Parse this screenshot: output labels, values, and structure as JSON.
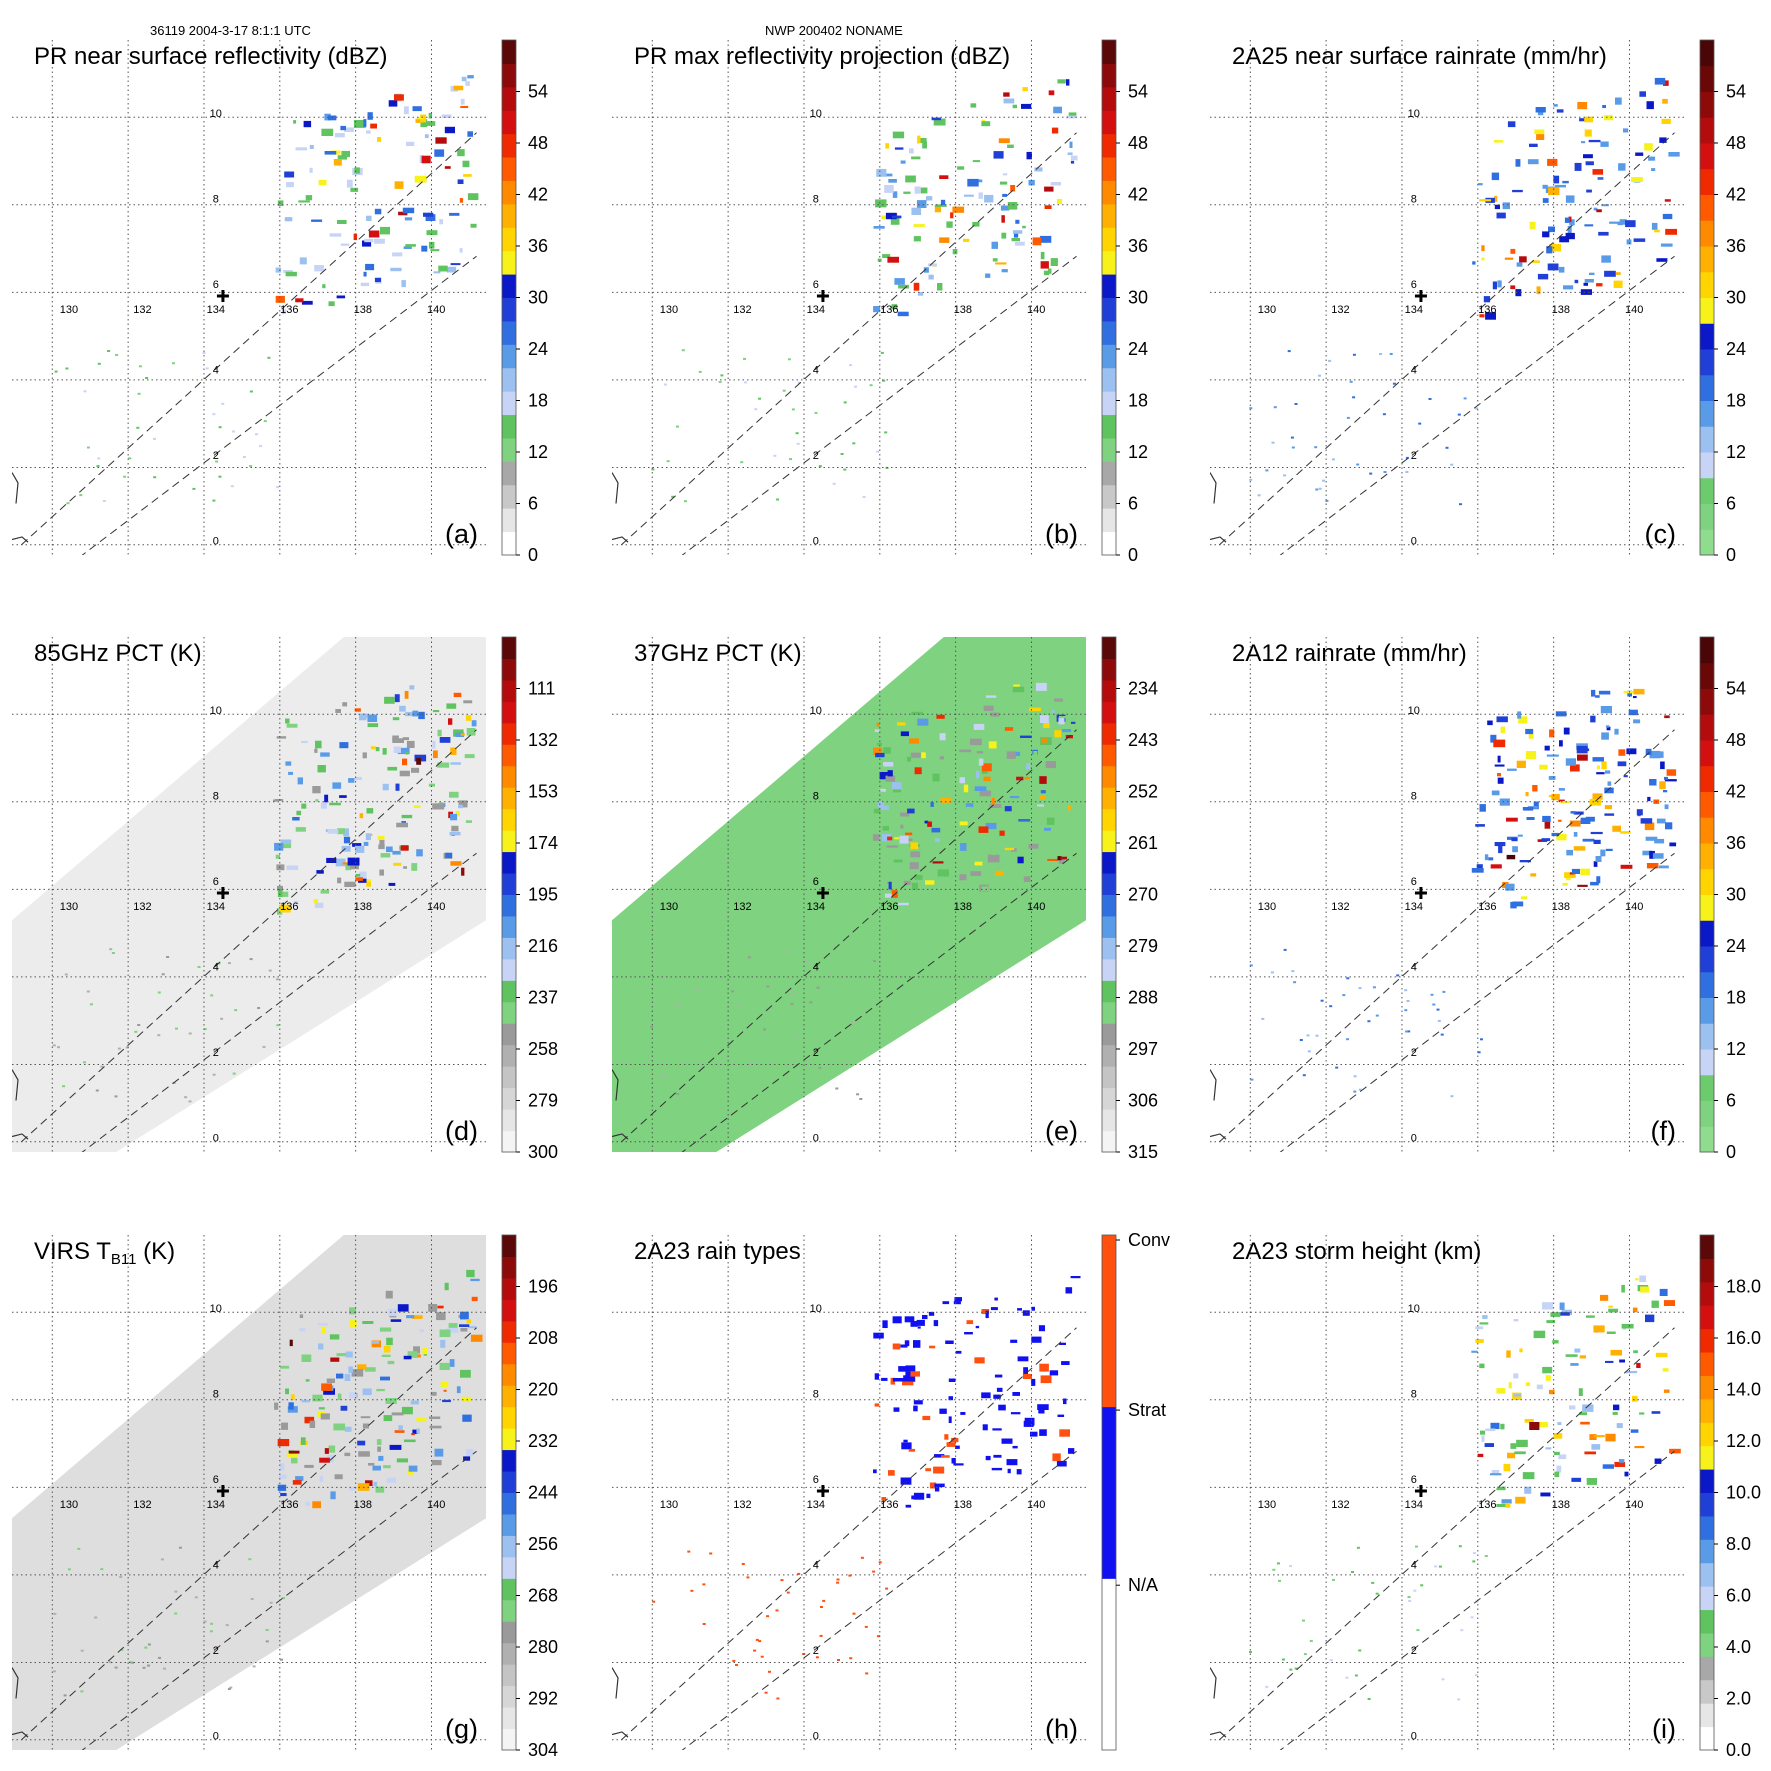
{
  "figure": {
    "header_left": "36119 2004-3-17 8:1:1 UTC",
    "header_right": "NWP 200402 NONAME"
  },
  "chart_data": [
    {
      "id": "a",
      "type": "heatmap",
      "title": "PR near surface reflectivity (dBZ)",
      "panel_label": "(a)",
      "colorbar_ticks": [
        "0",
        "6",
        "12",
        "18",
        "24",
        "30",
        "36",
        "42",
        "48",
        "54"
      ],
      "colors": [
        "#ffffff",
        "#e6e6e6",
        "#c8c8c8",
        "#a8a8a8",
        "#7fd27f",
        "#5fc45f",
        "#c8d4f5",
        "#9cc0f0",
        "#5a9be8",
        "#2f6fe0",
        "#1f3fd6",
        "#0a18c8",
        "#f7f21a",
        "#ffd400",
        "#ffb000",
        "#ff8a00",
        "#ff5a00",
        "#f02a00",
        "#d40f0f",
        "#b40c0c",
        "#8c0a0a",
        "#5a0808"
      ],
      "x_ticks": [
        "130",
        "132",
        "134",
        "136",
        "138",
        "140"
      ],
      "y_ticks": [
        "0",
        "2",
        "4",
        "6",
        "8",
        "10"
      ],
      "coverage": "swath"
    },
    {
      "id": "b",
      "type": "heatmap",
      "title": "PR max reflectivity projection (dBZ)",
      "panel_label": "(b)",
      "colorbar_ticks": [
        "0",
        "6",
        "12",
        "18",
        "24",
        "30",
        "36",
        "42",
        "48",
        "54"
      ],
      "colors": [
        "#ffffff",
        "#e6e6e6",
        "#c8c8c8",
        "#a8a8a8",
        "#7fd27f",
        "#5fc45f",
        "#c8d4f5",
        "#9cc0f0",
        "#5a9be8",
        "#2f6fe0",
        "#1f3fd6",
        "#0a18c8",
        "#f7f21a",
        "#ffd400",
        "#ffb000",
        "#ff8a00",
        "#ff5a00",
        "#f02a00",
        "#d40f0f",
        "#b40c0c",
        "#8c0a0a",
        "#5a0808"
      ],
      "x_ticks": [
        "130",
        "132",
        "134",
        "136",
        "138",
        "140"
      ],
      "y_ticks": [
        "0",
        "2",
        "4",
        "6",
        "8",
        "10"
      ],
      "coverage": "swath"
    },
    {
      "id": "c",
      "type": "heatmap",
      "title": "2A25 near surface rainrate (mm/hr)",
      "panel_label": "(c)",
      "colorbar_ticks": [
        "0",
        "6",
        "12",
        "18",
        "24",
        "30",
        "36",
        "42",
        "48",
        "54"
      ],
      "colors": [
        "#8fdc8f",
        "#7fd27f",
        "#6ccb6c",
        "#c8d4f5",
        "#9cc0f0",
        "#5a9be8",
        "#2f6fe0",
        "#1f3fd6",
        "#0a18c8",
        "#f7f21a",
        "#ffd400",
        "#ffb000",
        "#ff8a00",
        "#ff5a00",
        "#f02a00",
        "#d40f0f",
        "#b40c0c",
        "#8c0a0a",
        "#6a0808",
        "#4a0606"
      ],
      "x_ticks": [
        "130",
        "132",
        "134",
        "136",
        "138",
        "140"
      ],
      "y_ticks": [
        "0",
        "2",
        "4",
        "6",
        "8",
        "10"
      ],
      "coverage": "swath"
    },
    {
      "id": "d",
      "type": "heatmap",
      "title": "85GHz PCT (K)",
      "panel_label": "(d)",
      "colorbar_ticks": [
        "300",
        "279",
        "258",
        "237",
        "216",
        "195",
        "174",
        "153",
        "132",
        "111"
      ],
      "colors": [
        "#f4f4f4",
        "#e6e6e6",
        "#d6d6d6",
        "#c4c4c4",
        "#b0b0b0",
        "#9a9a9a",
        "#7fd27f",
        "#5fc45f",
        "#c8d4f5",
        "#9cc0f0",
        "#5a9be8",
        "#2f6fe0",
        "#1f3fd6",
        "#0a18c8",
        "#f7f21a",
        "#ffd400",
        "#ffb000",
        "#ff8a00",
        "#ff5a00",
        "#f02a00",
        "#d40f0f",
        "#b40c0c",
        "#8c0a0a",
        "#5a0808"
      ],
      "x_ticks": [
        "130",
        "132",
        "134",
        "136",
        "138",
        "140"
      ],
      "y_ticks": [
        "0",
        "2",
        "4",
        "6",
        "8",
        "10"
      ],
      "coverage": "wide"
    },
    {
      "id": "e",
      "type": "heatmap",
      "title": "37GHz PCT (K)",
      "panel_label": "(e)",
      "colorbar_ticks": [
        "315",
        "306",
        "297",
        "288",
        "279",
        "270",
        "261",
        "252",
        "243",
        "234"
      ],
      "colors": [
        "#f4f4f4",
        "#e6e6e6",
        "#d6d6d6",
        "#c4c4c4",
        "#b0b0b0",
        "#9a9a9a",
        "#7fd27f",
        "#5fc45f",
        "#c8d4f5",
        "#9cc0f0",
        "#5a9be8",
        "#2f6fe0",
        "#1f3fd6",
        "#0a18c8",
        "#f7f21a",
        "#ffd400",
        "#ffb000",
        "#ff8a00",
        "#ff5a00",
        "#f02a00",
        "#d40f0f",
        "#b40c0c",
        "#8c0a0a",
        "#5a0808"
      ],
      "x_ticks": [
        "130",
        "132",
        "134",
        "136",
        "138",
        "140"
      ],
      "y_ticks": [
        "0",
        "2",
        "4",
        "6",
        "8",
        "10"
      ],
      "coverage": "wide"
    },
    {
      "id": "f",
      "type": "heatmap",
      "title": "2A12 rainrate (mm/hr)",
      "panel_label": "(f)",
      "colorbar_ticks": [
        "0",
        "6",
        "12",
        "18",
        "24",
        "30",
        "36",
        "42",
        "48",
        "54"
      ],
      "colors": [
        "#8fdc8f",
        "#7fd27f",
        "#6ccb6c",
        "#c8d4f5",
        "#9cc0f0",
        "#5a9be8",
        "#2f6fe0",
        "#1f3fd6",
        "#0a18c8",
        "#f7f21a",
        "#ffd400",
        "#ffb000",
        "#ff8a00",
        "#ff5a00",
        "#f02a00",
        "#d40f0f",
        "#b40c0c",
        "#8c0a0a",
        "#6a0808",
        "#4a0606"
      ],
      "x_ticks": [
        "130",
        "132",
        "134",
        "136",
        "138",
        "140"
      ],
      "y_ticks": [
        "0",
        "2",
        "4",
        "6",
        "8",
        "10"
      ],
      "coverage": "wide"
    },
    {
      "id": "g",
      "type": "heatmap",
      "title": "VIRS T",
      "title_sub": "B11",
      "title_tail": " (K)",
      "panel_label": "(g)",
      "colorbar_ticks": [
        "304",
        "292",
        "280",
        "268",
        "256",
        "244",
        "232",
        "220",
        "208",
        "196"
      ],
      "colors": [
        "#f4f4f4",
        "#e6e6e6",
        "#d6d6d6",
        "#c4c4c4",
        "#b0b0b0",
        "#9a9a9a",
        "#7fd27f",
        "#5fc45f",
        "#c8d4f5",
        "#9cc0f0",
        "#5a9be8",
        "#2f6fe0",
        "#1f3fd6",
        "#0a18c8",
        "#f7f21a",
        "#ffd400",
        "#ffb000",
        "#ff8a00",
        "#ff5a00",
        "#f02a00",
        "#d40f0f",
        "#b40c0c",
        "#8c0a0a",
        "#5a0808"
      ],
      "x_ticks": [
        "130",
        "132",
        "134",
        "136",
        "138",
        "140"
      ],
      "y_ticks": [
        "0",
        "2",
        "4",
        "6",
        "8",
        "10"
      ],
      "coverage": "wide"
    },
    {
      "id": "h",
      "type": "heatmap",
      "title": "2A23 rain types",
      "panel_label": "(h)",
      "colorbar_ticks": [
        "N/A",
        "Strat",
        "Conv"
      ],
      "colors": [
        "#ffffff",
        "#1010f0",
        "#ff5010"
      ],
      "x_ticks": [
        "130",
        "132",
        "134",
        "136",
        "138",
        "140"
      ],
      "y_ticks": [
        "0",
        "2",
        "4",
        "6",
        "8",
        "10"
      ],
      "coverage": "swath"
    },
    {
      "id": "i",
      "type": "heatmap",
      "title": "2A23 storm height (km)",
      "panel_label": "(i)",
      "colorbar_ticks": [
        "0.0",
        "2.0",
        "4.0",
        "6.0",
        "8.0",
        "10.0",
        "12.0",
        "14.0",
        "16.0",
        "18.0"
      ],
      "colors": [
        "#ffffff",
        "#e6e6e6",
        "#c8c8c8",
        "#a8a8a8",
        "#7fd27f",
        "#5fc45f",
        "#c8d4f5",
        "#9cc0f0",
        "#5a9be8",
        "#2f6fe0",
        "#1f3fd6",
        "#0a18c8",
        "#f7f21a",
        "#ffd400",
        "#ffb000",
        "#ff8a00",
        "#ff5a00",
        "#f02a00",
        "#d40f0f",
        "#b40c0c",
        "#8c0a0a",
        "#5a0808"
      ],
      "x_ticks": [
        "130",
        "132",
        "134",
        "136",
        "138",
        "140"
      ],
      "y_ticks": [
        "0",
        "2",
        "4",
        "6",
        "8",
        "10"
      ],
      "coverage": "swath"
    }
  ]
}
